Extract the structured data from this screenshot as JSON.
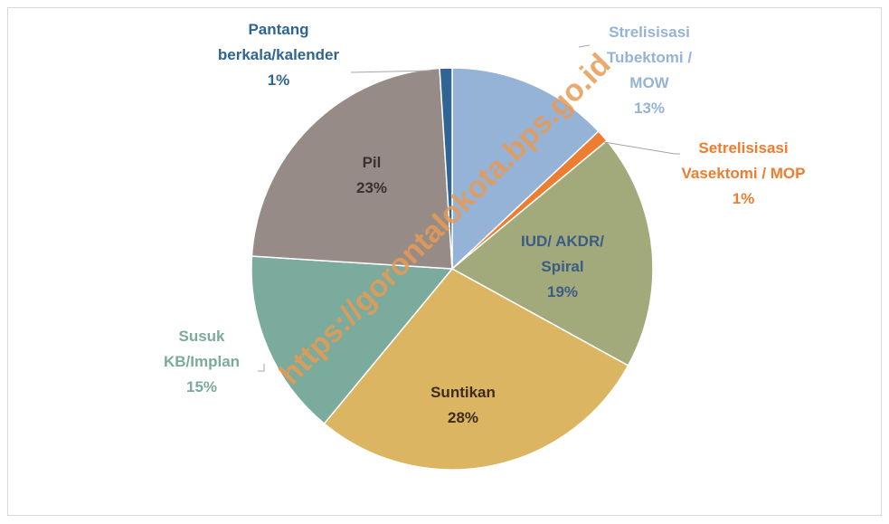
{
  "chart_data": {
    "type": "pie",
    "categories": [
      "Strelisisasi Tubektomi / MOW",
      "Setrelisisasi Vasektomi / MOP",
      "IUD/ AKDR/ Spiral",
      "Suntikan",
      "Susuk KB/Implan",
      "Pil",
      "Pantang berkala/kalender"
    ],
    "values": [
      13,
      1,
      19,
      28,
      15,
      23,
      1
    ],
    "value_labels": [
      "13%",
      "1%",
      "19%",
      "28%",
      "15%",
      "23%",
      "1%"
    ],
    "colors": [
      "#95b3d7",
      "#ed7d31",
      "#a2aa7c",
      "#dcb562",
      "#7aab9c",
      "#968b87",
      "#2e6593"
    ],
    "label_colors": [
      "#95b3d7",
      "#ed7d31",
      "#3b5c84",
      "#3b2d1c",
      "#7aab9c",
      "#3a3030",
      "#2e6593"
    ],
    "watermark": "https://gorontalokota.bps.go.id"
  }
}
